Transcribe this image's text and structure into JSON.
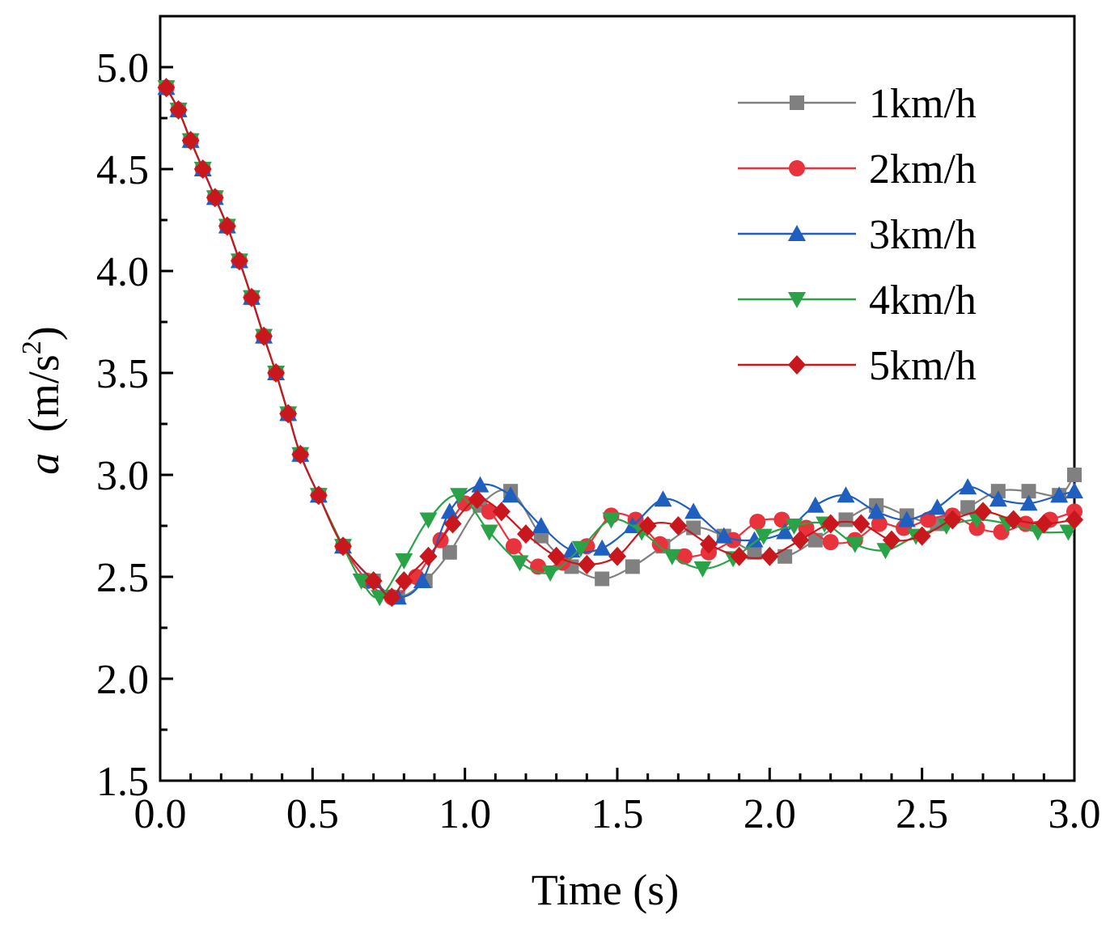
{
  "chart_data": {
    "type": "line",
    "title": "",
    "xlabel": "Time (s)",
    "ylabel_italic": "a",
    "ylabel_unit_prefix": "(m/s",
    "ylabel_unit_exp": "2",
    "ylabel_unit_suffix": ")",
    "xlim": [
      0.0,
      3.0
    ],
    "ylim": [
      1.5,
      5.25
    ],
    "xticks": [
      "0.0",
      "0.5",
      "1.0",
      "1.5",
      "2.0",
      "2.5",
      "3.0"
    ],
    "yticks": [
      "1.5",
      "2.0",
      "2.5",
      "3.0",
      "3.5",
      "4.0",
      "4.5",
      "5.0"
    ],
    "legend_position": "top-right",
    "shared_x_head": [
      0.0,
      0.02,
      0.06,
      0.1,
      0.14,
      0.18,
      0.22,
      0.26,
      0.3,
      0.34,
      0.38,
      0.42,
      0.46,
      0.52,
      0.6,
      0.7
    ],
    "shared_y_head": [
      4.9,
      4.79,
      4.64,
      4.5,
      4.36,
      4.22,
      4.05,
      3.87,
      3.68,
      3.5,
      3.3,
      3.1,
      2.9,
      2.65,
      2.48,
      2.4
    ],
    "series": [
      {
        "name": "1km/h",
        "color": "#808080",
        "marker": "square",
        "x": [
          0.02,
          0.06,
          0.1,
          0.14,
          0.18,
          0.22,
          0.26,
          0.3,
          0.34,
          0.38,
          0.42,
          0.46,
          0.52,
          0.6,
          0.7,
          0.78,
          0.87,
          0.95,
          1.05,
          1.15,
          1.25,
          1.35,
          1.45,
          1.55,
          1.65,
          1.75,
          1.85,
          1.95,
          2.05,
          2.15,
          2.25,
          2.35,
          2.45,
          2.55,
          2.65,
          2.75,
          2.85,
          2.95,
          3.0
        ],
        "y": [
          4.9,
          4.79,
          4.64,
          4.5,
          4.36,
          4.22,
          4.05,
          3.87,
          3.68,
          3.5,
          3.3,
          3.1,
          2.9,
          2.65,
          2.48,
          2.4,
          2.48,
          2.62,
          2.85,
          2.92,
          2.7,
          2.55,
          2.49,
          2.55,
          2.65,
          2.74,
          2.7,
          2.62,
          2.6,
          2.68,
          2.78,
          2.85,
          2.8,
          2.76,
          2.84,
          2.92,
          2.92,
          2.9,
          3.0
        ]
      },
      {
        "name": "2km/h",
        "color": "#e8323c",
        "marker": "circle",
        "x": [
          0.02,
          0.06,
          0.1,
          0.14,
          0.18,
          0.22,
          0.26,
          0.3,
          0.34,
          0.38,
          0.42,
          0.46,
          0.52,
          0.6,
          0.68,
          0.76,
          0.84,
          0.92,
          1.0,
          1.08,
          1.16,
          1.24,
          1.32,
          1.4,
          1.48,
          1.56,
          1.64,
          1.72,
          1.8,
          1.88,
          1.96,
          2.04,
          2.12,
          2.2,
          2.28,
          2.36,
          2.44,
          2.52,
          2.6,
          2.68,
          2.76,
          2.84,
          2.92,
          3.0
        ],
        "y": [
          4.9,
          4.79,
          4.64,
          4.5,
          4.36,
          4.22,
          4.05,
          3.87,
          3.68,
          3.5,
          3.3,
          3.1,
          2.9,
          2.65,
          2.48,
          2.4,
          2.5,
          2.68,
          2.86,
          2.82,
          2.65,
          2.55,
          2.57,
          2.65,
          2.8,
          2.78,
          2.66,
          2.6,
          2.62,
          2.68,
          2.77,
          2.78,
          2.74,
          2.67,
          2.68,
          2.76,
          2.74,
          2.78,
          2.8,
          2.74,
          2.72,
          2.76,
          2.78,
          2.82
        ]
      },
      {
        "name": "3km/h",
        "color": "#1f5fbf",
        "marker": "triangle-up",
        "x": [
          0.02,
          0.06,
          0.1,
          0.14,
          0.18,
          0.22,
          0.26,
          0.3,
          0.34,
          0.38,
          0.42,
          0.46,
          0.52,
          0.6,
          0.7,
          0.78,
          0.86,
          0.95,
          1.05,
          1.15,
          1.25,
          1.35,
          1.45,
          1.55,
          1.65,
          1.75,
          1.85,
          1.95,
          2.05,
          2.15,
          2.25,
          2.35,
          2.45,
          2.55,
          2.65,
          2.75,
          2.85,
          2.95,
          3.0
        ],
        "y": [
          4.9,
          4.79,
          4.64,
          4.5,
          4.36,
          4.22,
          4.05,
          3.87,
          3.68,
          3.5,
          3.3,
          3.1,
          2.9,
          2.65,
          2.48,
          2.4,
          2.48,
          2.82,
          2.95,
          2.9,
          2.75,
          2.63,
          2.64,
          2.75,
          2.88,
          2.82,
          2.7,
          2.68,
          2.72,
          2.85,
          2.9,
          2.82,
          2.78,
          2.84,
          2.94,
          2.88,
          2.86,
          2.9,
          2.92
        ]
      },
      {
        "name": "4km/h",
        "color": "#2aa348",
        "marker": "triangle-down",
        "x": [
          0.02,
          0.06,
          0.1,
          0.14,
          0.18,
          0.22,
          0.26,
          0.3,
          0.34,
          0.38,
          0.42,
          0.46,
          0.52,
          0.6,
          0.66,
          0.72,
          0.8,
          0.88,
          0.98,
          1.08,
          1.18,
          1.28,
          1.38,
          1.48,
          1.58,
          1.68,
          1.78,
          1.88,
          1.98,
          2.08,
          2.18,
          2.28,
          2.38,
          2.48,
          2.58,
          2.68,
          2.78,
          2.88,
          2.98
        ],
        "y": [
          4.9,
          4.79,
          4.64,
          4.5,
          4.36,
          4.22,
          4.05,
          3.87,
          3.68,
          3.5,
          3.3,
          3.1,
          2.9,
          2.65,
          2.48,
          2.4,
          2.58,
          2.78,
          2.9,
          2.72,
          2.57,
          2.52,
          2.64,
          2.78,
          2.72,
          2.6,
          2.54,
          2.59,
          2.7,
          2.75,
          2.76,
          2.66,
          2.63,
          2.7,
          2.75,
          2.78,
          2.76,
          2.72,
          2.72
        ]
      },
      {
        "name": "5km/h",
        "color": "#c8181e",
        "marker": "diamond",
        "x": [
          0.02,
          0.06,
          0.1,
          0.14,
          0.18,
          0.22,
          0.26,
          0.3,
          0.34,
          0.38,
          0.42,
          0.46,
          0.52,
          0.6,
          0.7,
          0.76,
          0.8,
          0.88,
          0.96,
          1.04,
          1.12,
          1.2,
          1.3,
          1.4,
          1.5,
          1.6,
          1.7,
          1.8,
          1.9,
          2.0,
          2.1,
          2.2,
          2.3,
          2.4,
          2.5,
          2.6,
          2.7,
          2.8,
          2.9,
          3.0
        ],
        "y": [
          4.9,
          4.79,
          4.64,
          4.5,
          4.36,
          4.22,
          4.05,
          3.87,
          3.68,
          3.5,
          3.3,
          3.1,
          2.9,
          2.65,
          2.48,
          2.4,
          2.48,
          2.6,
          2.76,
          2.88,
          2.82,
          2.71,
          2.6,
          2.56,
          2.6,
          2.75,
          2.75,
          2.66,
          2.6,
          2.6,
          2.68,
          2.76,
          2.76,
          2.68,
          2.7,
          2.78,
          2.82,
          2.78,
          2.76,
          2.78
        ]
      }
    ]
  }
}
